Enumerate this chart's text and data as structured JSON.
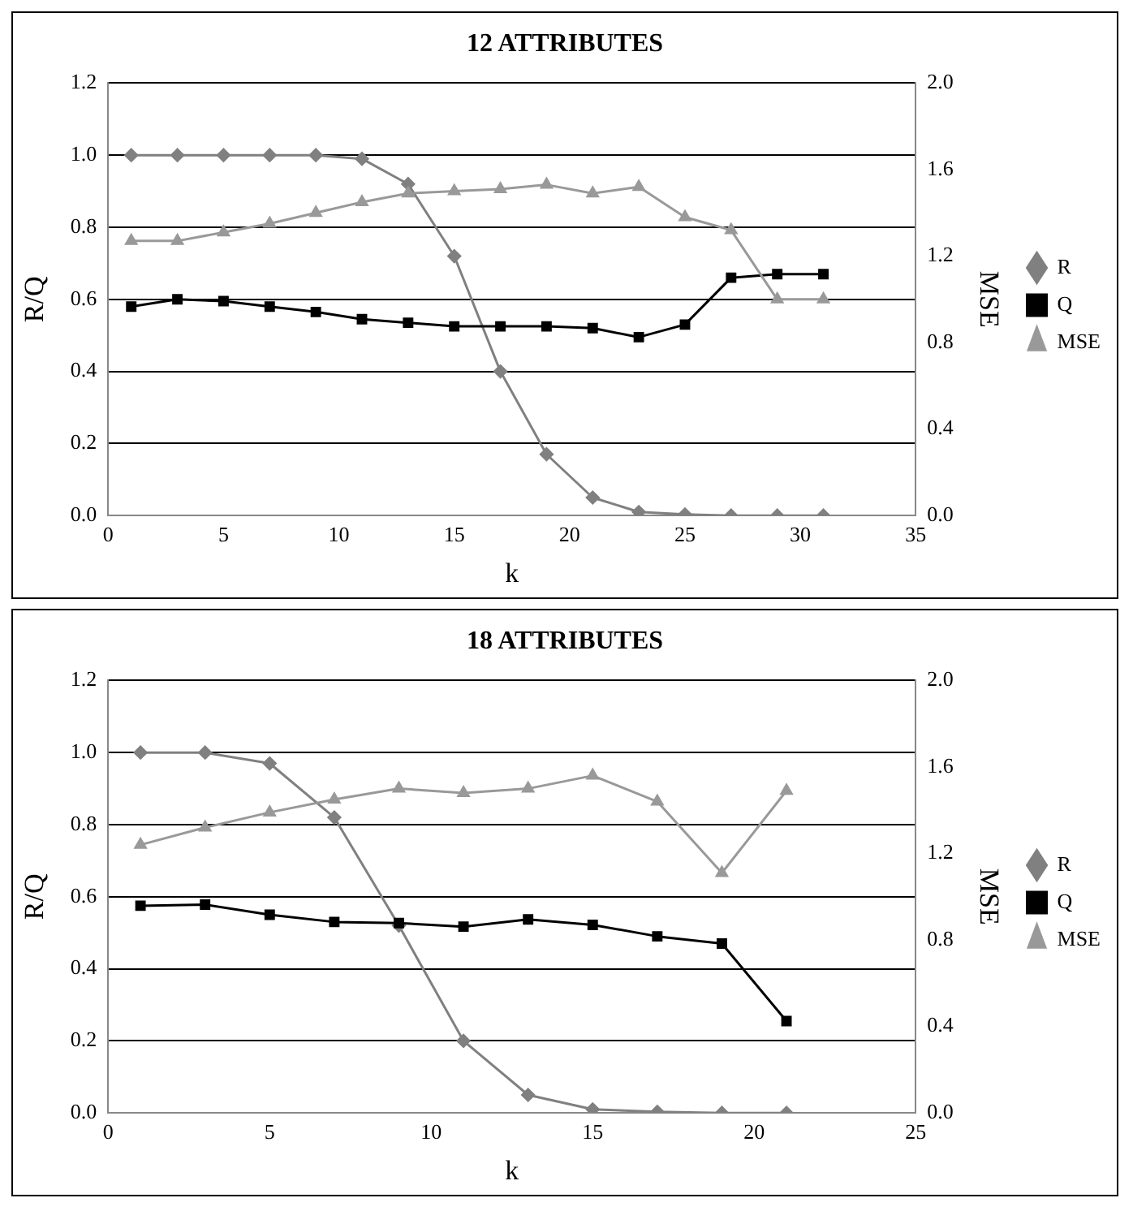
{
  "chart_data": [
    {
      "type": "line",
      "title": "12 ATTRIBUTES",
      "xlabel": "k",
      "ylabel": "R/Q",
      "y2label": "MSE",
      "x": [
        1,
        3,
        5,
        7,
        9,
        11,
        13,
        15,
        17,
        19,
        21,
        23,
        25,
        27,
        29,
        31
      ],
      "xlim": [
        0,
        35
      ],
      "xticks": [
        0,
        5,
        10,
        15,
        20,
        25,
        30,
        35
      ],
      "ylim": [
        0,
        1.2
      ],
      "yticks": [
        {
          "value": 0,
          "label": "0.0"
        },
        {
          "value": 0.2,
          "label": "0.2"
        },
        {
          "value": 0.4,
          "label": "0.4"
        },
        {
          "value": 0.6,
          "label": "0.6"
        },
        {
          "value": 0.8,
          "label": "0.8"
        },
        {
          "value": 1,
          "label": "1.0"
        },
        {
          "value": 1.2,
          "label": "1.2"
        }
      ],
      "y2lim": [
        0,
        2
      ],
      "y2ticks": [
        {
          "value": 0,
          "label": "0.0"
        },
        {
          "value": 0.4,
          "label": "0.4"
        },
        {
          "value": 0.8,
          "label": "0.8"
        },
        {
          "value": 1.2,
          "label": "1.2"
        },
        {
          "value": 1.6,
          "label": "1.6"
        },
        {
          "value": 2,
          "label": "2.0"
        }
      ],
      "grid": "y",
      "legend": "right",
      "series": [
        {
          "name": "R",
          "color": "#808080",
          "marker": "diamond",
          "values": [
            1,
            1,
            1,
            1,
            1,
            0.99,
            0.92,
            0.72,
            0.4,
            0.17,
            0.05,
            0.01,
            0.003,
            0,
            0,
            0
          ]
        },
        {
          "name": "Q",
          "color": "#000000",
          "marker": "square",
          "values": [
            0.58,
            0.6,
            0.595,
            0.58,
            0.565,
            0.545,
            0.535,
            0.525,
            0.525,
            0.525,
            0.52,
            0.495,
            0.53,
            0.66,
            0.67,
            0.67
          ]
        },
        {
          "name": "MSE",
          "color": "#999999",
          "marker": "triangle",
          "axis": "y2",
          "values": [
            1.27,
            1.27,
            1.31,
            1.35,
            1.4,
            1.45,
            1.49,
            1.5,
            1.51,
            1.53,
            1.49,
            1.52,
            1.38,
            1.32,
            1,
            1
          ]
        }
      ]
    },
    {
      "type": "line",
      "title": "18 ATTRIBUTES",
      "xlabel": "k",
      "ylabel": "R/Q",
      "y2label": "MSE",
      "x": [
        1,
        3,
        5,
        7,
        9,
        11,
        13,
        15,
        17,
        19,
        21
      ],
      "xlim": [
        0,
        25
      ],
      "xticks": [
        0,
        5,
        10,
        15,
        20,
        25
      ],
      "ylim": [
        0,
        1.2
      ],
      "yticks": [
        {
          "value": 0,
          "label": "0.0"
        },
        {
          "value": 0.2,
          "label": "0.2"
        },
        {
          "value": 0.4,
          "label": "0.4"
        },
        {
          "value": 0.6,
          "label": "0.6"
        },
        {
          "value": 0.8,
          "label": "0.8"
        },
        {
          "value": 1,
          "label": "1.0"
        },
        {
          "value": 1.2,
          "label": "1.2"
        }
      ],
      "y2lim": [
        0,
        2
      ],
      "y2ticks": [
        {
          "value": 0,
          "label": "0.0"
        },
        {
          "value": 0.4,
          "label": "0.4"
        },
        {
          "value": 0.8,
          "label": "0.8"
        },
        {
          "value": 1.2,
          "label": "1.2"
        },
        {
          "value": 1.6,
          "label": "1.6"
        },
        {
          "value": 2,
          "label": "2.0"
        }
      ],
      "grid": "y",
      "legend": "right",
      "series": [
        {
          "name": "R",
          "color": "#808080",
          "marker": "diamond",
          "values": [
            1,
            1,
            0.97,
            0.82,
            0.52,
            0.2,
            0.05,
            0.01,
            0.003,
            0,
            0
          ]
        },
        {
          "name": "Q",
          "color": "#000000",
          "marker": "square",
          "values": [
            0.575,
            0.578,
            0.55,
            0.53,
            0.527,
            0.517,
            0.537,
            0.522,
            0.49,
            0.47,
            0.255
          ]
        },
        {
          "name": "MSE",
          "color": "#999999",
          "marker": "triangle",
          "axis": "y2",
          "values": [
            1.24,
            1.32,
            1.39,
            1.45,
            1.5,
            1.48,
            1.5,
            1.56,
            1.44,
            1.11,
            1.49
          ]
        }
      ]
    }
  ]
}
